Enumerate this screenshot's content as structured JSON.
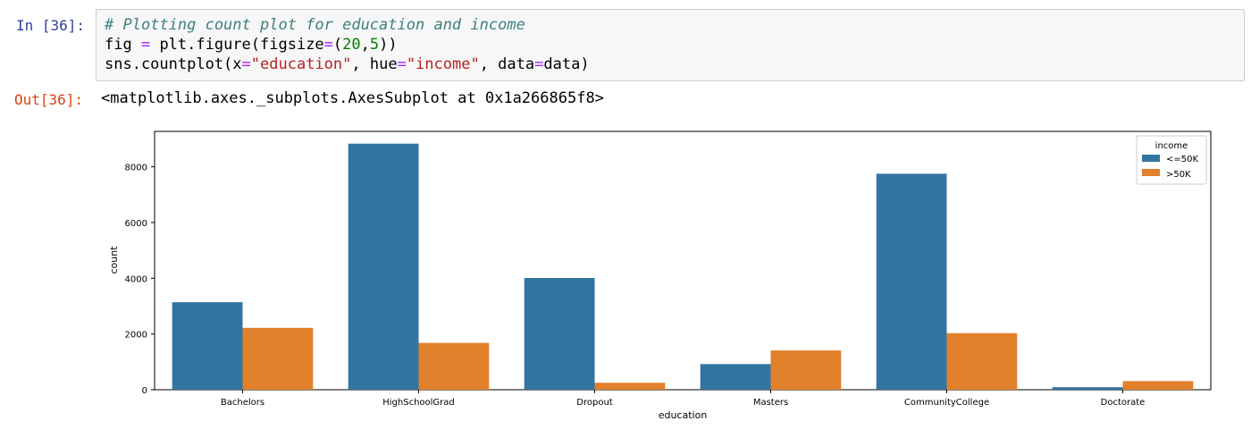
{
  "cell": {
    "in_prompt": "In [36]:",
    "out_prompt": "Out[36]:",
    "code": {
      "comment": "# Plotting count plot for education and income",
      "line2_a": "fig ",
      "line2_op": "=",
      "line2_b": " plt.figure(figsize",
      "line2_op2": "=",
      "line2_c": "(",
      "line2_n1": "20",
      "line2_d": ",",
      "line2_n2": "5",
      "line2_e": "))",
      "line3_a": "sns.countplot(x",
      "line3_op1": "=",
      "line3_s1": "\"education\"",
      "line3_b": ", hue",
      "line3_op2": "=",
      "line3_s2": "\"income\"",
      "line3_c": ", data",
      "line3_op3": "=",
      "line3_d": "data)"
    },
    "output_text": "<matplotlib.axes._subplots.AxesSubplot at 0x1a266865f8>"
  },
  "colors": {
    "series_0": "#3274a1",
    "series_1": "#e1812c"
  },
  "chart_data": {
    "type": "bar",
    "categories": [
      "Bachelors",
      "HighSchoolGrad",
      "Dropout",
      "Masters",
      "CommunityCollege",
      "Doctorate"
    ],
    "series": [
      {
        "name": "<=50K",
        "values": [
          3140,
          8830,
          4010,
          920,
          7750,
          90
        ]
      },
      {
        "name": ">50K",
        "values": [
          2220,
          1680,
          250,
          1410,
          2030,
          310
        ]
      }
    ],
    "xlabel": "education",
    "ylabel": "count",
    "ylim": [
      0,
      9270
    ],
    "yticks": [
      0,
      2000,
      4000,
      6000,
      8000
    ],
    "ytick_labels": [
      "0",
      "2000",
      "4000",
      "6000",
      "8000"
    ],
    "legend_title": "income",
    "legend_position": "top-right",
    "grid": false
  }
}
